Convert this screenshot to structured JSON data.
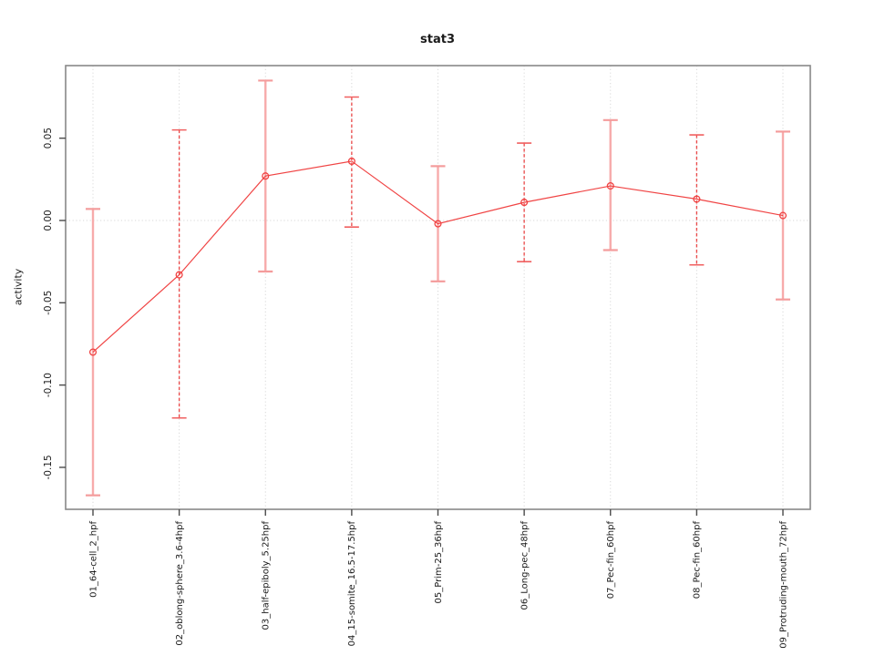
{
  "chart_data": {
    "type": "line",
    "title": "stat3",
    "xlabel": "",
    "ylabel": "activity",
    "legend": "none",
    "grid": "dotted vertical line at each category; dotted horizontal line at y=0",
    "categories": [
      "01_64-cell_2_hpf",
      "02_oblong-sphere_3.6-4hpf",
      "03_half-epiboly_5.25hpf",
      "04_15-somite_16.5-17.5hpf",
      "05_Prim-25_36hpf",
      "06_Long-pec_48hpf",
      "07_Pec-fin_60hpf",
      "08_Pec-fin_60hpf",
      "09_Protruding-mouth_72hpf"
    ],
    "series": [
      {
        "name": "stat3 activity",
        "values": [
          -0.08,
          -0.033,
          0.027,
          0.036,
          -0.002,
          0.011,
          0.021,
          0.013,
          0.003
        ],
        "error_high": [
          0.007,
          0.055,
          0.085,
          0.075,
          0.033,
          0.047,
          0.061,
          0.052,
          0.054
        ],
        "error_low": [
          -0.167,
          -0.12,
          -0.031,
          -0.004,
          -0.037,
          -0.025,
          -0.018,
          -0.027,
          -0.048
        ]
      }
    ],
    "errorbar_styles": [
      "solid",
      "dashed",
      "solid",
      "dashed",
      "solid",
      "dashed",
      "solid",
      "dashed",
      "solid"
    ],
    "yticks": [
      0.05,
      0.0,
      -0.05,
      -0.1,
      -0.15
    ],
    "ytick_labels": [
      "0.05",
      "0.00",
      "-0.05",
      "-0.10",
      "-0.15"
    ],
    "ylim": [
      -0.1755,
      0.0941
    ],
    "colors": {
      "line": "#f04444",
      "point": "#f04444",
      "errorbar_solid": "#f7abab",
      "errorbar_dashed": "#ea4848",
      "cap_solid": "#f49c9c",
      "cap_dashed": "#f06060",
      "grid": "#d8d8d8",
      "box": "#898989",
      "tick": "#4a4a4a",
      "text": "#1a1a1a"
    }
  }
}
